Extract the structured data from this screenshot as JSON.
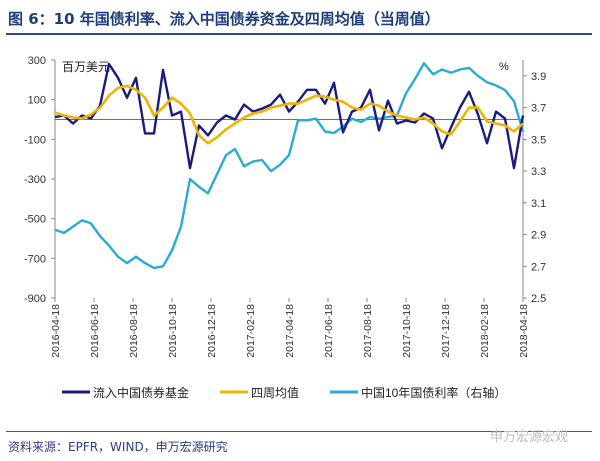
{
  "title": "图 6：10 年国债利率、流入中国债券资金及四周均值（当周值）",
  "source": "资料来源：EPFR，WIND，申万宏源研究",
  "watermark": "申万宏源宏观",
  "chart_data": {
    "type": "line",
    "title": "10年国债利率、流入中国债券资金及四周均值（当周值）",
    "ylabel_left": "百万美元",
    "ylabel_right": "%",
    "ylim_left": [
      -900,
      300
    ],
    "yticks_left": [
      300,
      100,
      -100,
      -300,
      -500,
      -700,
      -900
    ],
    "ylim_right": [
      2.5,
      4.0
    ],
    "yticks_right": [
      "3.9",
      "3.7",
      "3.5",
      "3.3",
      "3.1",
      "2.9",
      "2.7",
      "2.5"
    ],
    "x_range": [
      "2016-04-18",
      "2018-04-18"
    ],
    "x_frequency": "biweekly (approx.)",
    "xticks": [
      "2016-04-18",
      "2016-06-18",
      "2016-08-18",
      "2016-10-18",
      "2016-12-18",
      "2017-02-18",
      "2017-04-18",
      "2017-06-18",
      "2017-08-18",
      "2017-10-18",
      "2017-12-18",
      "2018-02-18",
      "2018-04-18"
    ],
    "legend_position": "bottom",
    "series": [
      {
        "name": "流入中国债券基金",
        "axis": "left",
        "color": "#1a1a80",
        "values": [
          12,
          20,
          -20,
          20,
          5,
          70,
          280,
          210,
          110,
          210,
          -70,
          -70,
          250,
          20,
          40,
          -245,
          -30,
          -80,
          -15,
          20,
          0,
          75,
          40,
          55,
          75,
          125,
          40,
          90,
          150,
          150,
          80,
          185,
          -65,
          40,
          60,
          150,
          -55,
          95,
          -20,
          -5,
          -15,
          30,
          5,
          -145,
          -40,
          60,
          140,
          25,
          -120,
          40,
          5,
          -245,
          20
        ]
      },
      {
        "name": "四周均值",
        "axis": "left",
        "color": "#f0b400",
        "values": [
          35,
          20,
          10,
          5,
          25,
          60,
          120,
          160,
          170,
          150,
          110,
          20,
          60,
          110,
          80,
          30,
          -80,
          -120,
          -90,
          -50,
          -20,
          10,
          30,
          40,
          60,
          70,
          80,
          80,
          100,
          120,
          115,
          100,
          90,
          60,
          50,
          80,
          70,
          40,
          20,
          10,
          0,
          10,
          -20,
          -60,
          -75,
          -10,
          60,
          60,
          -10,
          -20,
          -30,
          -60,
          -20
        ]
      },
      {
        "name": "中国10年国债利率（右轴）",
        "axis": "right",
        "color": "#2aabd6",
        "values": [
          2.93,
          2.91,
          2.95,
          2.99,
          2.97,
          2.89,
          2.83,
          2.76,
          2.72,
          2.76,
          2.72,
          2.69,
          2.7,
          2.8,
          2.95,
          3.25,
          3.2,
          3.16,
          3.28,
          3.4,
          3.44,
          3.33,
          3.36,
          3.37,
          3.3,
          3.34,
          3.4,
          3.62,
          3.62,
          3.63,
          3.55,
          3.54,
          3.58,
          3.63,
          3.61,
          3.64,
          3.63,
          3.64,
          3.65,
          3.79,
          3.88,
          3.98,
          3.91,
          3.94,
          3.92,
          3.94,
          3.95,
          3.9,
          3.86,
          3.84,
          3.81,
          3.74,
          3.55
        ]
      }
    ]
  }
}
